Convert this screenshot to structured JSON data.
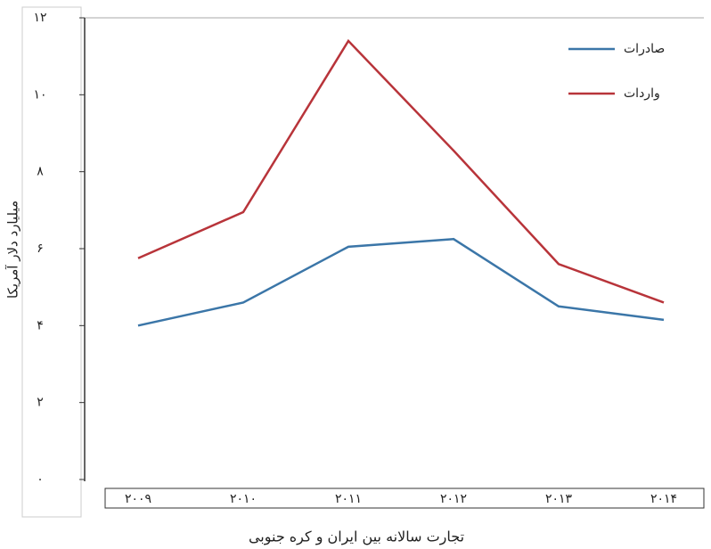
{
  "chart_data": {
    "type": "line",
    "x_label": "تجارت سالانه بین ایران و کره جنوبی",
    "y_label": "میلیارد دلار آمریکا",
    "categories": [
      "۲۰۰۹",
      "۲۰۱۰",
      "۲۰۱۱",
      "۲۰۱۲",
      "۲۰۱۳",
      "۲۰۱۴"
    ],
    "series": [
      {
        "name": "صادرات",
        "color": "#3b76a8",
        "values": [
          4.0,
          4.6,
          6.05,
          6.25,
          4.5,
          4.15
        ]
      },
      {
        "name": "واردات",
        "color": "#b8343a",
        "values": [
          5.75,
          6.95,
          11.4,
          8.55,
          5.6,
          4.6
        ]
      }
    ],
    "ylim": [
      0,
      12
    ],
    "yticks": [
      {
        "value": 0,
        "label": "۰"
      },
      {
        "value": 2,
        "label": "۲"
      },
      {
        "value": 4,
        "label": "۴"
      },
      {
        "value": 6,
        "label": "۶"
      },
      {
        "value": 8,
        "label": "۸"
      },
      {
        "value": 10,
        "label": "۱۰"
      },
      {
        "value": 12,
        "label": "۱۲"
      }
    ],
    "legend": "upper right"
  }
}
